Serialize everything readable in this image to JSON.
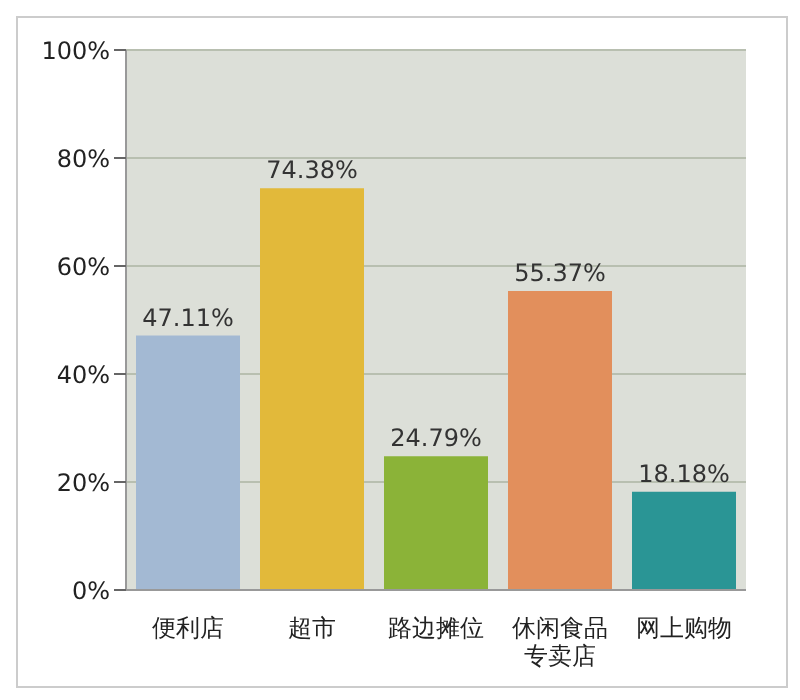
{
  "chart_data": {
    "type": "bar",
    "categories": [
      "便利店",
      "超市",
      "路边摊位",
      "休闲食品专卖店",
      "网上购物"
    ],
    "values": [
      47.11,
      74.38,
      24.79,
      55.37,
      18.18
    ],
    "colors": [
      "#a3b9d3",
      "#e2b93a",
      "#8bb338",
      "#e28f5c",
      "#2a9595"
    ],
    "value_labels": [
      "47.11%",
      "74.38%",
      "24.79%",
      "55.37%",
      "18.18%"
    ],
    "ylim": [
      0,
      100
    ],
    "yticks": [
      {
        "value": 0,
        "label": "0%"
      },
      {
        "value": 20,
        "label": "20%"
      },
      {
        "value": 40,
        "label": "40%"
      },
      {
        "value": 60,
        "label": "60%"
      },
      {
        "value": 80,
        "label": "80%"
      },
      {
        "value": 100,
        "label": "100%"
      }
    ],
    "grid": "y"
  }
}
